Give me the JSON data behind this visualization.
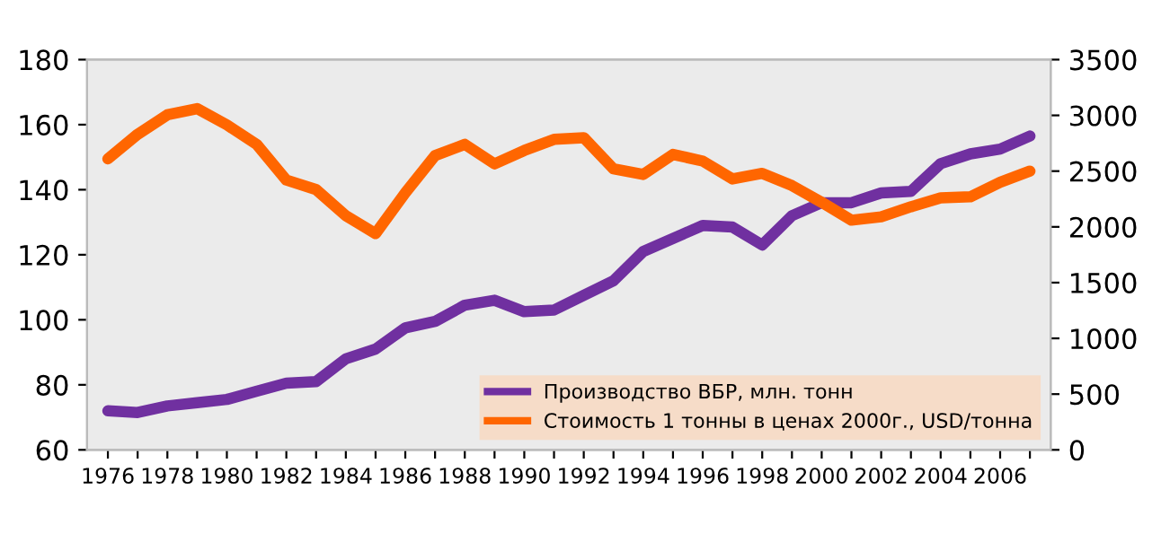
{
  "chart_data": {
    "type": "line",
    "categories": [
      "1976",
      null,
      "1978",
      null,
      "1980",
      null,
      "1982",
      null,
      "1984",
      null,
      "1986",
      null,
      "1988",
      null,
      "1990",
      null,
      "1992",
      null,
      "1994",
      null,
      "1996",
      null,
      "1998",
      null,
      "2000",
      null,
      "2002",
      null,
      "2004",
      null,
      "2006",
      null
    ],
    "series": [
      {
        "name": "Производство ВБР, млн. тонн",
        "color": "#7030a0",
        "values": [
          72,
          71.5,
          73.5,
          74.5,
          75.5,
          78,
          80.5,
          81,
          88,
          91,
          97.5,
          99.5,
          104.5,
          106,
          102.5,
          103,
          107.5,
          112,
          121,
          125,
          129,
          128.5,
          123,
          132,
          136,
          136,
          139,
          139.5,
          148,
          151,
          152.5,
          156.5
        ]
      },
      {
        "name": "Стоимость 1 тонны в ценах 2000г., USD/тонна",
        "color": "#ff6600",
        "axis": "y2",
        "values": [
          2610,
          2830,
          3005,
          3060,
          2915,
          2740,
          2420,
          2335,
          2100,
          1940,
          2305,
          2640,
          2740,
          2565,
          2685,
          2785,
          2800,
          2520,
          2470,
          2650,
          2590,
          2430,
          2480,
          2370,
          2220,
          2060,
          2090,
          2180,
          2260,
          2270,
          2400,
          2500
        ]
      }
    ],
    "ylim": [
      60,
      180
    ],
    "yticks": [
      60,
      80,
      100,
      120,
      140,
      160,
      180
    ],
    "y2lim": [
      0,
      3500
    ],
    "y2ticks": [
      0,
      500,
      1000,
      1500,
      2000,
      2500,
      3000,
      3500
    ],
    "legend": "bottom right"
  }
}
